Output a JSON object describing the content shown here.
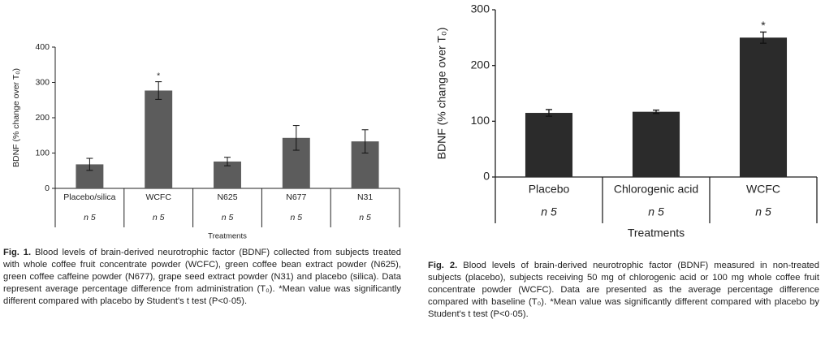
{
  "chart_data": [
    {
      "type": "bar",
      "y_label": "BDNF (% change over T₀)",
      "x_label": "Treatments",
      "categories": [
        "Placebo/silica",
        "WCFC",
        "N625",
        "N677",
        "N31"
      ],
      "sample_sizes": [
        "n 5",
        "n 5",
        "n 5",
        "n 5",
        "n 5"
      ],
      "values": [
        68,
        277,
        76,
        143,
        133
      ],
      "errors": [
        17,
        25,
        12,
        35,
        33
      ],
      "markers": [
        null,
        "*",
        null,
        null,
        null
      ],
      "color": "#5c5c5c",
      "ylim": [
        0,
        400
      ],
      "yticks": [
        0,
        100,
        200,
        300,
        400
      ],
      "caption_label": "Fig. 1.",
      "caption": "Blood levels of brain-derived neurotrophic factor (BDNF) collected from subjects treated with whole coffee fruit concentrate powder (WCFC), green coffee bean extract powder (N625), green coffee caffeine powder (N677), grape seed extract powder (N31) and placebo (silica). Data represent average percentage difference from administration (T₀). *Mean value was significantly different compared with placebo by Student's t test (P<0·05)."
    },
    {
      "type": "bar",
      "y_label": "BDNF (% change over T₀)",
      "x_label": "Treatments",
      "categories": [
        "Placebo",
        "Chlorogenic acid",
        "WCFC"
      ],
      "sample_sizes": [
        "n 5",
        "n 5",
        "n 5"
      ],
      "values": [
        115,
        117,
        250
      ],
      "errors": [
        6,
        3,
        10
      ],
      "markers": [
        null,
        null,
        "*"
      ],
      "color": "#2b2b2b",
      "ylim": [
        0,
        300
      ],
      "yticks": [
        0,
        100,
        200,
        300
      ],
      "caption_label": "Fig. 2.",
      "caption": "Blood levels of brain-derived neurotrophic factor (BDNF) measured in non-treated subjects (placebo), subjects receiving 50 mg of chlorogenic acid or 100 mg whole coffee fruit concentrate powder (WCFC). Data are presented as the average percentage difference compared with baseline (T₀). *Mean value was significantly different compared with placebo by Student's t test (P<0·05)."
    }
  ]
}
